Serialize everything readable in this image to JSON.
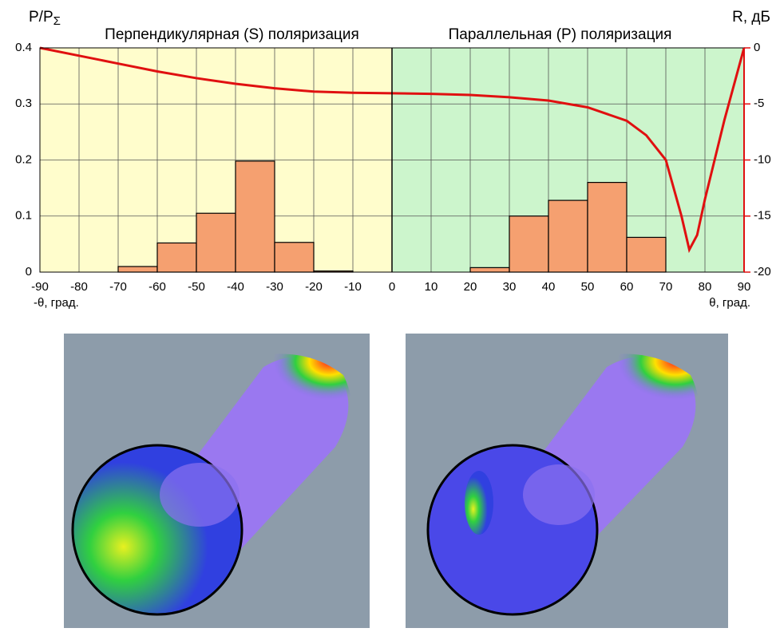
{
  "chart_data": {
    "type": "histogram",
    "y_label": "P/P",
    "y_label_sub": "Σ",
    "y2_label": "R, дБ",
    "x_label_left": "-θ, град.",
    "x_label_right": "θ, град.",
    "region_left_label": "Перпендикулярная (S) поляризация",
    "region_right_label": "Параллельная (P) поляризация",
    "region_left_color": "#fffdcc",
    "region_right_color": "#ccf5cc",
    "bins": [
      -90,
      -80,
      -70,
      -60,
      -50,
      -40,
      -30,
      -20,
      -10,
      0,
      10,
      20,
      30,
      40,
      50,
      60,
      70,
      80,
      90
    ],
    "counts": [
      0,
      0,
      0.01,
      0.052,
      0.105,
      0.198,
      0.053,
      0.002,
      0,
      0,
      0,
      0.008,
      0.1,
      0.128,
      0.16,
      0.062,
      0,
      0
    ],
    "bar_color": "#f5a070",
    "line": {
      "axis": "y2",
      "color": "#e01010",
      "x": [
        -90,
        -80,
        -70,
        -60,
        -50,
        -40,
        -30,
        -20,
        -10,
        0,
        10,
        20,
        30,
        40,
        50,
        60,
        65,
        70,
        74,
        76,
        78,
        80,
        85,
        90
      ],
      "values": [
        0,
        -0.7,
        -1.4,
        -2.1,
        -2.7,
        -3.2,
        -3.6,
        -3.9,
        -4.0,
        -4.05,
        -4.1,
        -4.2,
        -4.4,
        -4.7,
        -5.3,
        -6.5,
        -7.8,
        -10,
        -15,
        -18,
        -16.7,
        -13.5,
        -6.4,
        0
      ]
    },
    "xlim": [
      -90,
      90
    ],
    "xticks": [
      -90,
      -80,
      -70,
      -60,
      -50,
      -40,
      -30,
      -20,
      -10,
      0,
      10,
      20,
      30,
      40,
      50,
      60,
      70,
      80,
      90
    ],
    "ylim": [
      0,
      0.4
    ],
    "yticks": [
      0,
      0.1,
      0.2,
      0.3,
      0.4
    ],
    "y2lim": [
      -20,
      0
    ],
    "y2ticks": [
      0,
      -5,
      -10,
      -15,
      -20
    ],
    "grid": true
  }
}
